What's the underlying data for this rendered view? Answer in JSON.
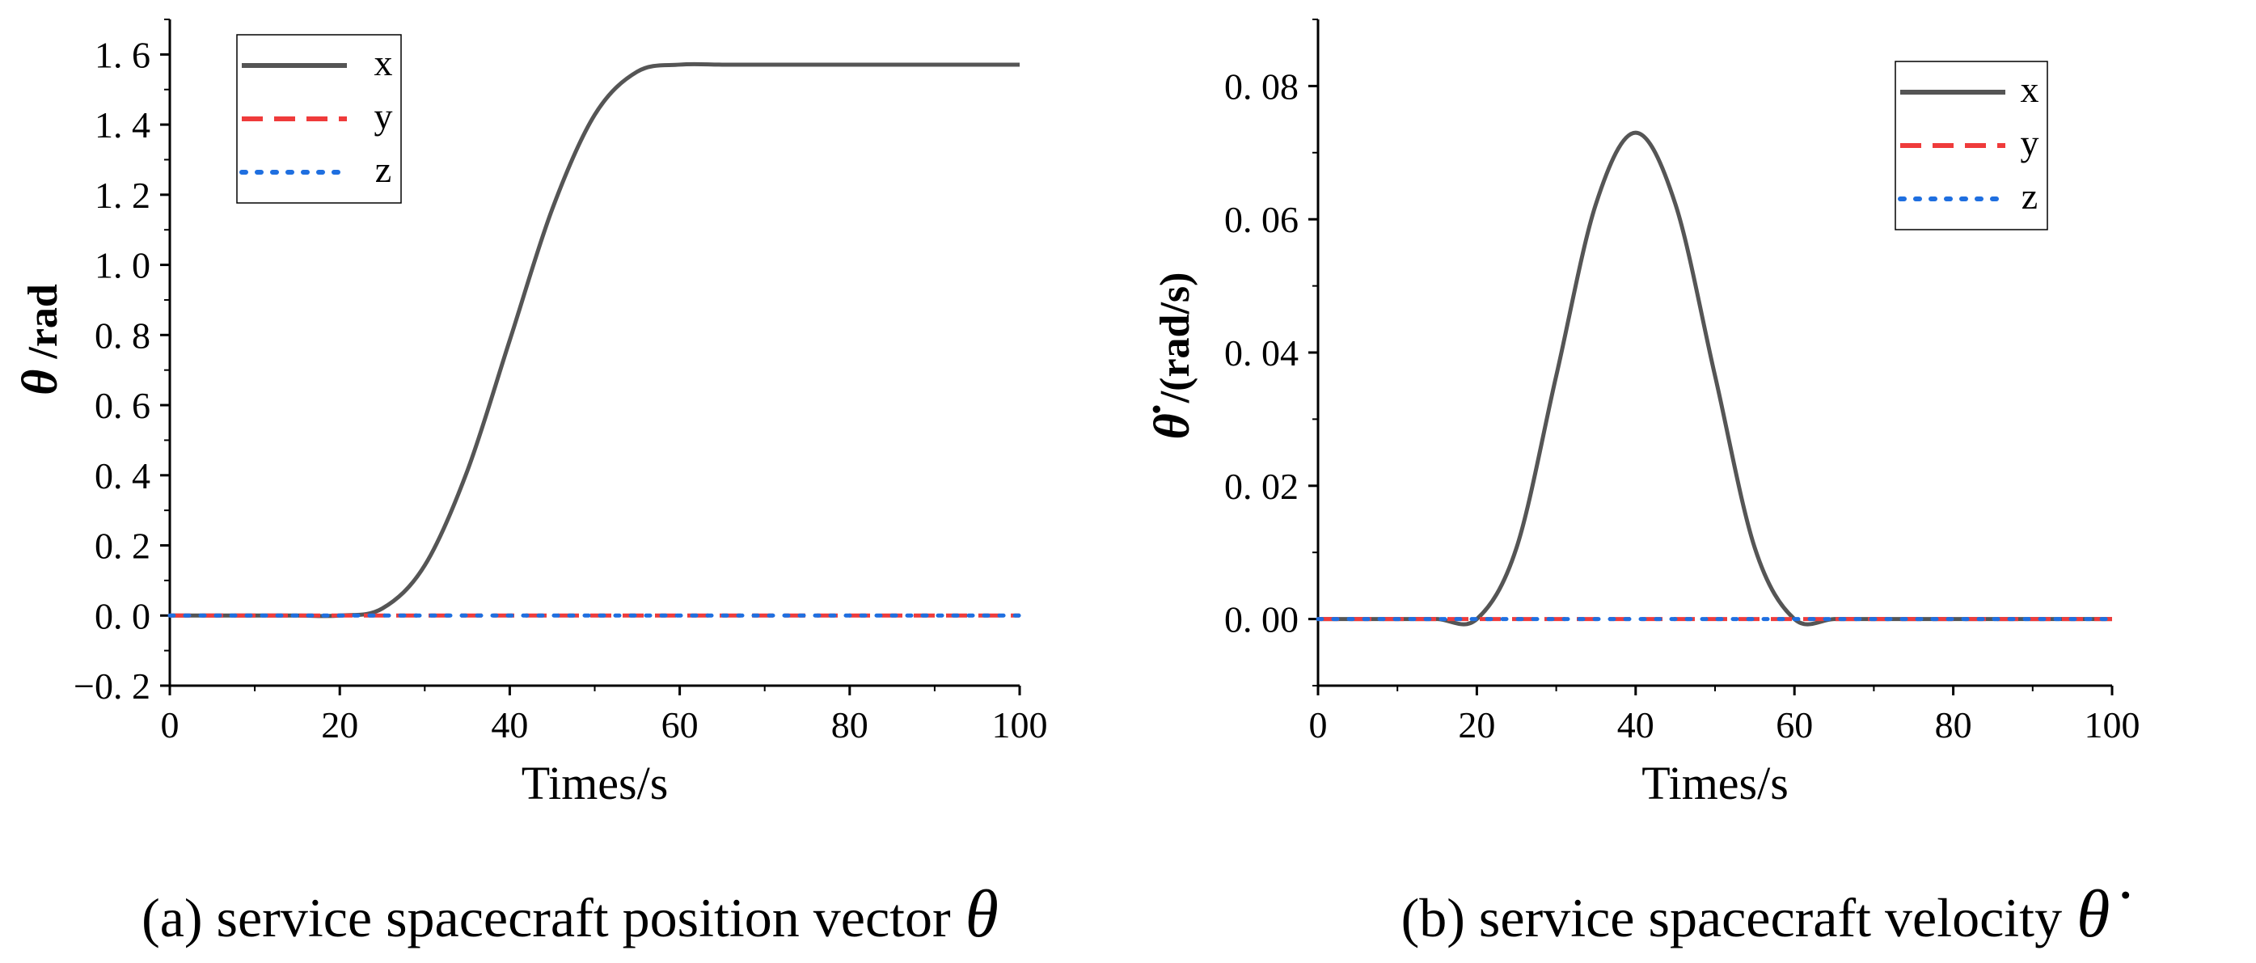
{
  "chart_data": [
    {
      "type": "line",
      "title": "",
      "caption": "(a) service spacecraft position vector",
      "caption_symbol": "θ",
      "xlabel": "Times/s",
      "ylabel_symbol": "θ",
      "ylabel": " /rad",
      "xlim": [
        0,
        100
      ],
      "ylim": [
        -0.2,
        1.7
      ],
      "xticks": [
        0,
        20,
        40,
        60,
        80,
        100
      ],
      "xtick_labels": [
        "0",
        "20",
        "40",
        "60",
        "80",
        "100"
      ],
      "yticks": [
        -0.2,
        0,
        0.2,
        0.4,
        0.6,
        0.8,
        1.0,
        1.2,
        1.4,
        1.6
      ],
      "ytick_labels": [
        "−0. 2",
        "0. 0",
        "0. 2",
        "0. 4",
        "0. 6",
        "0. 8",
        "1. 0",
        "1. 2",
        "1. 4",
        "1. 6"
      ],
      "legend_position": "top-left",
      "x": [
        0,
        5,
        10,
        15,
        20,
        25,
        30,
        35,
        40,
        45,
        50,
        55,
        60,
        65,
        70,
        75,
        80,
        85,
        90,
        95,
        100
      ],
      "series": [
        {
          "name": "x",
          "color": "#555555",
          "style": "solid",
          "values": [
            0,
            0,
            0,
            0,
            0,
            0.02,
            0.143,
            0.412,
            0.785,
            1.159,
            1.428,
            1.551,
            1.571,
            1.571,
            1.571,
            1.571,
            1.571,
            1.571,
            1.571,
            1.571,
            1.571
          ]
        },
        {
          "name": "y",
          "color": "#ef3b3b",
          "style": "dashed",
          "values": [
            0,
            0,
            0,
            0,
            0,
            0,
            0,
            0,
            0,
            0,
            0,
            0,
            0,
            0,
            0,
            0,
            0,
            0,
            0,
            0,
            0
          ]
        },
        {
          "name": "z",
          "color": "#1f6fe0",
          "style": "dotted",
          "values": [
            0,
            0,
            0,
            0,
            0,
            0,
            0,
            0,
            0,
            0,
            0,
            0,
            0,
            0,
            0,
            0,
            0,
            0,
            0,
            0,
            0
          ]
        }
      ]
    },
    {
      "type": "line",
      "title": "",
      "caption": "(b) service spacecraft velocity",
      "caption_symbol": "θ̇",
      "xlabel": "Times/s",
      "ylabel_symbol": "θ̇",
      "ylabel": " /(rad/s)",
      "xlim": [
        0,
        100
      ],
      "ylim": [
        -0.01,
        0.09
      ],
      "xticks": [
        0,
        20,
        40,
        60,
        80,
        100
      ],
      "xtick_labels": [
        "0",
        "20",
        "40",
        "60",
        "80",
        "100"
      ],
      "yticks": [
        0,
        0.02,
        0.04,
        0.06,
        0.08
      ],
      "ytick_labels": [
        "0. 00",
        "0. 02",
        "0. 04",
        "0. 06",
        "0. 08"
      ],
      "legend_position": "top-right",
      "x": [
        0,
        5,
        10,
        15,
        20,
        25,
        30,
        35,
        40,
        45,
        50,
        55,
        60,
        65,
        70,
        75,
        80,
        85,
        90,
        95,
        100
      ],
      "series": [
        {
          "name": "x",
          "color": "#555555",
          "style": "solid",
          "values": [
            0,
            0,
            0,
            0,
            0,
            0.0107,
            0.0365,
            0.0623,
            0.073,
            0.0623,
            0.0365,
            0.0107,
            0,
            0,
            0,
            0,
            0,
            0,
            0,
            0,
            0
          ]
        },
        {
          "name": "y",
          "color": "#ef3b3b",
          "style": "dashed",
          "values": [
            0,
            0,
            0,
            0,
            0,
            0,
            0,
            0,
            0,
            0,
            0,
            0,
            0,
            0,
            0,
            0,
            0,
            0,
            0,
            0,
            0
          ]
        },
        {
          "name": "z",
          "color": "#1f6fe0",
          "style": "dotted",
          "values": [
            0,
            0,
            0,
            0,
            0,
            0,
            0,
            0,
            0,
            0,
            0,
            0,
            0,
            0,
            0,
            0,
            0,
            0,
            0,
            0,
            0
          ]
        }
      ]
    }
  ]
}
